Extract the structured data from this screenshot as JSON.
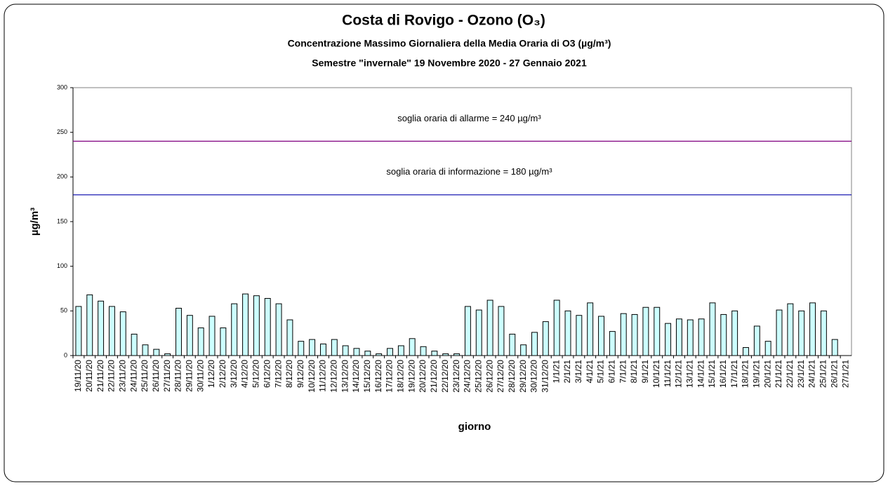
{
  "chart_data": {
    "type": "bar",
    "title": "Costa di Rovigo - Ozono (O₃)",
    "subtitle": "Concentrazione  Massimo Giornaliera della Media Oraria di O3 (µg/m³)",
    "subtitle2": "Semestre \"invernale\" 19 Novembre 2020 - 27 Gennaio 2021",
    "xlabel": "giorno",
    "ylabel": "µg/m³",
    "categories": [
      "19/11/20",
      "20/11/20",
      "21/11/20",
      "22/11/20",
      "23/11/20",
      "24/11/20",
      "25/11/20",
      "26/11/20",
      "27/11/20",
      "28/11/20",
      "29/11/20",
      "30/11/20",
      "1/12/20",
      "2/12/20",
      "3/12/20",
      "4/12/20",
      "5/12/20",
      "6/12/20",
      "7/12/20",
      "8/12/20",
      "9/12/20",
      "10/12/20",
      "11/12/20",
      "12/12/20",
      "13/12/20",
      "14/12/20",
      "15/12/20",
      "16/12/20",
      "17/12/20",
      "18/12/20",
      "19/12/20",
      "20/12/20",
      "21/12/20",
      "22/12/20",
      "23/12/20",
      "24/12/20",
      "25/12/20",
      "26/12/20",
      "27/12/20",
      "28/12/20",
      "29/12/20",
      "30/12/20",
      "31/12/20",
      "1/1/21",
      "2/1/21",
      "3/1/21",
      "4/1/21",
      "5/1/21",
      "6/1/21",
      "7/1/21",
      "8/1/21",
      "9/1/21",
      "10/1/21",
      "11/1/21",
      "12/1/21",
      "13/1/21",
      "14/1/21",
      "15/1/21",
      "16/1/21",
      "17/1/21",
      "18/1/21",
      "19/1/21",
      "20/1/21",
      "21/1/21",
      "22/1/21",
      "23/1/21",
      "24/1/21",
      "25/1/21",
      "26/1/21",
      "27/1/21"
    ],
    "values": [
      55,
      68,
      61,
      55,
      49,
      24,
      12,
      7,
      2,
      53,
      45,
      31,
      44,
      31,
      58,
      69,
      67,
      64,
      58,
      40,
      16,
      18,
      13,
      18,
      11,
      8,
      5,
      2,
      8,
      11,
      19,
      10,
      5,
      2,
      2,
      55,
      51,
      62,
      55,
      24,
      12,
      26,
      38,
      62,
      50,
      45,
      59,
      44,
      27,
      47,
      46,
      54,
      54,
      36,
      41,
      40,
      41,
      59,
      46,
      50,
      9,
      33,
      16,
      51,
      58,
      50,
      59,
      50,
      18,
      null
    ],
    "color": "#ccffff",
    "ylim": [
      0,
      300
    ],
    "yticks": [
      0,
      50,
      100,
      150,
      200,
      250,
      300
    ],
    "thresholds": [
      {
        "value": 240,
        "label": "soglia oraria di allarme = 240 µg/m³",
        "color": "#800080"
      },
      {
        "value": 180,
        "label": "soglia oraria di informazione = 180 µg/m³",
        "color": "#0000aa"
      }
    ]
  }
}
